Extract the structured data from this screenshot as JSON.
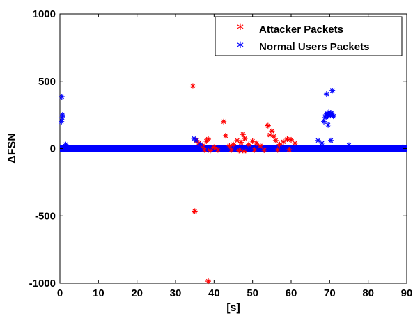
{
  "chart_data": {
    "type": "scatter",
    "title": "",
    "xlabel": "[s]",
    "ylabel": "ΔFSN",
    "xlim": [
      0,
      90
    ],
    "ylim": [
      -1000,
      1000
    ],
    "xticks": [
      0,
      10,
      20,
      30,
      40,
      50,
      60,
      70,
      80,
      90
    ],
    "yticks": [
      -1000,
      -500,
      0,
      500,
      1000
    ],
    "xtick_labels": [
      "0",
      "10",
      "20",
      "30",
      "40",
      "50",
      "60",
      "70",
      "80",
      "90"
    ],
    "ytick_labels": [
      "-1000",
      "-500",
      "0",
      "500",
      "1000"
    ],
    "grid": false,
    "legend_position": "top-right",
    "marker": "*",
    "series": [
      {
        "name": "Attacker Packets",
        "color": "#ff0000",
        "points": [
          [
            34.5,
            465
          ],
          [
            35.0,
            -465
          ],
          [
            38.5,
            -985
          ],
          [
            35.5,
            60
          ],
          [
            36.0,
            40
          ],
          [
            37.0,
            20
          ],
          [
            38.0,
            55
          ],
          [
            38.5,
            70
          ],
          [
            40.0,
            10
          ],
          [
            41.0,
            -10
          ],
          [
            42.5,
            200
          ],
          [
            43.0,
            95
          ],
          [
            44.0,
            20
          ],
          [
            45.0,
            30
          ],
          [
            46.0,
            60
          ],
          [
            47.0,
            45
          ],
          [
            47.5,
            105
          ],
          [
            48.0,
            75
          ],
          [
            49.0,
            30
          ],
          [
            50.0,
            55
          ],
          [
            51.0,
            40
          ],
          [
            52.0,
            20
          ],
          [
            54.0,
            170
          ],
          [
            54.5,
            100
          ],
          [
            55.0,
            130
          ],
          [
            55.5,
            90
          ],
          [
            56.0,
            60
          ],
          [
            57.0,
            30
          ],
          [
            58.0,
            50
          ],
          [
            59.0,
            70
          ],
          [
            60.0,
            65
          ],
          [
            61.0,
            40
          ],
          [
            37.5,
            -10
          ],
          [
            39.0,
            -15
          ],
          [
            44.5,
            -10
          ],
          [
            46.5,
            -15
          ],
          [
            47.8,
            -20
          ],
          [
            50.5,
            -10
          ],
          [
            53.0,
            -12
          ],
          [
            56.5,
            -10
          ],
          [
            59.5,
            -8
          ]
        ]
      },
      {
        "name": "Normal Users Packets",
        "color": "#0000ff",
        "points": [
          [
            0.5,
            385
          ],
          [
            0.7,
            250
          ],
          [
            0.6,
            230
          ],
          [
            0.4,
            200
          ],
          [
            1.5,
            30
          ],
          [
            34.8,
            75
          ],
          [
            35.3,
            60
          ],
          [
            36.5,
            30
          ],
          [
            67.0,
            60
          ],
          [
            68.0,
            40
          ],
          [
            68.5,
            200
          ],
          [
            68.8,
            230
          ],
          [
            69.0,
            250
          ],
          [
            69.3,
            260
          ],
          [
            69.5,
            240
          ],
          [
            69.8,
            270
          ],
          [
            70.0,
            255
          ],
          [
            70.2,
            245
          ],
          [
            70.5,
            265
          ],
          [
            70.8,
            250
          ],
          [
            71.0,
            240
          ],
          [
            69.2,
            405
          ],
          [
            70.7,
            430
          ],
          [
            69.6,
            175
          ],
          [
            70.3,
            60
          ],
          [
            75.0,
            25
          ],
          [
            89.0,
            10
          ]
        ],
        "baseline_band": {
          "x_range": [
            0,
            90
          ],
          "y_value": 0
        }
      }
    ]
  }
}
